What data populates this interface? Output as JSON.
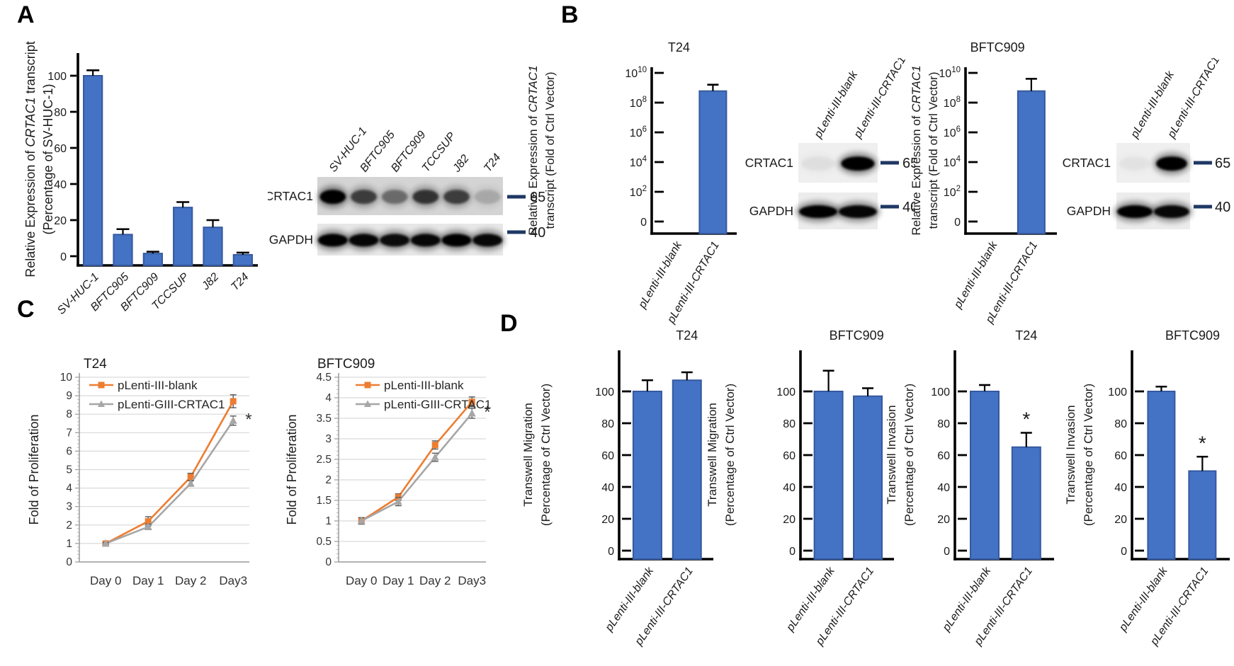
{
  "panels": {
    "a": "A",
    "b": "B",
    "c": "C",
    "d": "D"
  },
  "colors": {
    "bar_fill": "#4472C4",
    "bar_border": "#35599F",
    "series_orange": "#ED7D31",
    "series_gray": "#A6A6A6",
    "marker_dash_navy": "#1F3864",
    "gridline": "#D9D9D9",
    "axis_gray": "#A6A6A6",
    "axis_black": "#000000"
  },
  "chart_data": [
    {
      "id": "chartA",
      "type": "bar",
      "scale": "linear",
      "title": "",
      "ylabel_lines": [
        "Relative Expression of CRTAC1 transcript",
        "(Percentage of SV-HUC-1)"
      ],
      "italic_token": "CRTAC1",
      "categories": [
        "SV-HUC-1",
        "BFTC905",
        "BFTC909",
        "TCCSUP",
        "J82",
        "T24"
      ],
      "values": [
        100,
        12,
        1.5,
        27,
        16,
        0.8
      ],
      "errors": [
        3,
        3,
        1,
        3,
        4,
        1.2
      ],
      "stars": [],
      "yticks": [
        0,
        20,
        40,
        60,
        80,
        100
      ],
      "ylim": [
        0,
        110
      ]
    },
    {
      "id": "chartB1",
      "type": "bar",
      "scale": "log",
      "title": "T24",
      "ylabel_lines": [
        "Relative Expression of CRTAC1",
        "transcript (Fold of Ctrl Vector)"
      ],
      "italic_token": "CRTAC1",
      "categories": [
        "pLenti-III-blank",
        "pLenti-III-CRTAC1"
      ],
      "values": [
        1,
        600000000
      ],
      "errors": [
        0,
        1000000000
      ],
      "stars": [],
      "ytick_labels": [
        "0",
        "10^2",
        "10^4",
        "10^6",
        "10^8",
        "10^10"
      ],
      "ylim": [
        0,
        10000000000
      ]
    },
    {
      "id": "chartB2",
      "type": "bar",
      "scale": "log",
      "title": "BFTC909",
      "ylabel_lines": [
        "Relative Expression of CRTAC1",
        "transcript (Fold of Ctrl Vector)"
      ],
      "italic_token": "CRTAC1",
      "categories": [
        "pLenti-III-blank",
        "pLenti-III-CRTAC1"
      ],
      "values": [
        1,
        600000000
      ],
      "errors": [
        0,
        3400000000
      ],
      "stars": [],
      "ytick_labels": [
        "0",
        "10^2",
        "10^4",
        "10^6",
        "10^8",
        "10^10"
      ],
      "ylim": [
        0,
        10000000000
      ]
    },
    {
      "id": "chartC1",
      "type": "line",
      "title": "T24",
      "ylabel": "Fold of Proliferation",
      "x_categories": [
        "Day 0",
        "Day 1",
        "Day 2",
        "Day3"
      ],
      "ymax": 10,
      "ystep": 1,
      "series": [
        {
          "name": "pLenti-III-blank",
          "color": "#ED7D31",
          "marker": "square",
          "values": [
            1,
            2.2,
            4.6,
            8.7
          ],
          "errors": [
            0.05,
            0.25,
            0.2,
            0.35
          ],
          "star_last": false
        },
        {
          "name": "pLenti-GIII-CRTAC1",
          "color": "#A6A6A6",
          "marker": "triangle",
          "values": [
            1,
            1.9,
            4.25,
            7.65
          ],
          "errors": [
            0.05,
            0.15,
            0.15,
            0.25
          ],
          "star_last": true
        }
      ]
    },
    {
      "id": "chartC2",
      "type": "line",
      "title": "BFTC909",
      "ylabel": "Fold of Proliferation",
      "x_categories": [
        "Day 0",
        "Day 1",
        "Day 2",
        "Day3"
      ],
      "ymax": 4.5,
      "ystep": 0.5,
      "series": [
        {
          "name": "pLenti-III-blank",
          "color": "#ED7D31",
          "marker": "square",
          "values": [
            1,
            1.58,
            2.85,
            3.9
          ],
          "errors": [
            0.07,
            0.08,
            0.1,
            0.12
          ],
          "star_last": false
        },
        {
          "name": "pLenti-GIII-CRTAC1",
          "color": "#A6A6A6",
          "marker": "triangle",
          "values": [
            1,
            1.47,
            2.55,
            3.62
          ],
          "errors": [
            0.08,
            0.1,
            0.1,
            0.12
          ],
          "star_last": true
        }
      ]
    },
    {
      "id": "chartD1",
      "type": "bar",
      "scale": "linear",
      "title": "T24",
      "ylabel_lines": [
        "Transwell Migration",
        "(Percentage of Ctrl Vector)"
      ],
      "categories": [
        "pLenti-III-blank",
        "pLenti-III-CRTAC1"
      ],
      "values": [
        100,
        107
      ],
      "errors": [
        7,
        5
      ],
      "stars": [],
      "yticks": [
        0,
        20,
        40,
        60,
        80,
        100
      ],
      "ylim": [
        0,
        118
      ]
    },
    {
      "id": "chartD2",
      "type": "bar",
      "scale": "linear",
      "title": "BFTC909",
      "ylabel_lines": [
        "Transwell Migration",
        "(Percentage of Ctrl Vector)"
      ],
      "categories": [
        "pLenti-III-blank",
        "pLenti-III-CRTAC1"
      ],
      "values": [
        100,
        97
      ],
      "errors": [
        13,
        5
      ],
      "stars": [],
      "yticks": [
        0,
        20,
        40,
        60,
        80,
        100
      ],
      "ylim": [
        0,
        118
      ]
    },
    {
      "id": "chartD3",
      "type": "bar",
      "scale": "linear",
      "title": "T24",
      "ylabel_lines": [
        "Transwell Invasion",
        "(Percentage of Ctrl Vector)"
      ],
      "categories": [
        "pLenti-III-blank",
        "pLenti-III-CRTAC1"
      ],
      "values": [
        100,
        65
      ],
      "errors": [
        4,
        9
      ],
      "stars": [
        1
      ],
      "yticks": [
        0,
        20,
        40,
        60,
        80,
        100
      ],
      "ylim": [
        0,
        118
      ]
    },
    {
      "id": "chartD4",
      "type": "bar",
      "scale": "linear",
      "title": "BFTC909",
      "ylabel_lines": [
        "Transwell Invasion",
        "(Percentage of Ctrl Vector)"
      ],
      "categories": [
        "pLenti-III-blank",
        "pLenti-III-CRTAC1"
      ],
      "values": [
        100,
        50
      ],
      "errors": [
        3,
        9
      ],
      "stars": [
        1
      ],
      "yticks": [
        0,
        20,
        40,
        60,
        80,
        100
      ],
      "ylim": [
        0,
        118
      ]
    }
  ],
  "blots": [
    {
      "id": "blotA",
      "lanes": [
        "SV-HUC-1",
        "BFTC905",
        "BFTC909",
        "TCCSUP",
        "J82",
        "T24"
      ],
      "rows": [
        {
          "label": "CRTAC1",
          "marker": "65",
          "bg": "#d4d4d4",
          "bands": [
            1,
            0.62,
            0.4,
            0.68,
            0.62,
            0.15
          ]
        },
        {
          "label": "GAPDH",
          "marker": "40",
          "bg": "#e7e7e7",
          "bands": [
            1,
            0.96,
            0.92,
            0.95,
            1,
            0.95
          ]
        }
      ]
    },
    {
      "id": "blotB1",
      "lanes": [
        "pLenti-III-blank",
        "pLenti-III-CRTAC1"
      ],
      "rows": [
        {
          "label": "CRTAC1",
          "marker": "65",
          "bg": "#efefef",
          "bands": [
            0.04,
            1
          ]
        },
        {
          "label": "GAPDH",
          "marker": "40",
          "bg": "#ececec",
          "bands": [
            1,
            0.96
          ]
        }
      ]
    },
    {
      "id": "blotB2",
      "lanes": [
        "pLenti-III-blank",
        "pLenti-III-CRTAC1"
      ],
      "rows": [
        {
          "label": "CRTAC1",
          "marker": "65",
          "bg": "#efefef",
          "bands": [
            0.03,
            1
          ]
        },
        {
          "label": "GAPDH",
          "marker": "40",
          "bg": "#ececec",
          "bands": [
            1,
            0.95
          ]
        }
      ]
    }
  ]
}
